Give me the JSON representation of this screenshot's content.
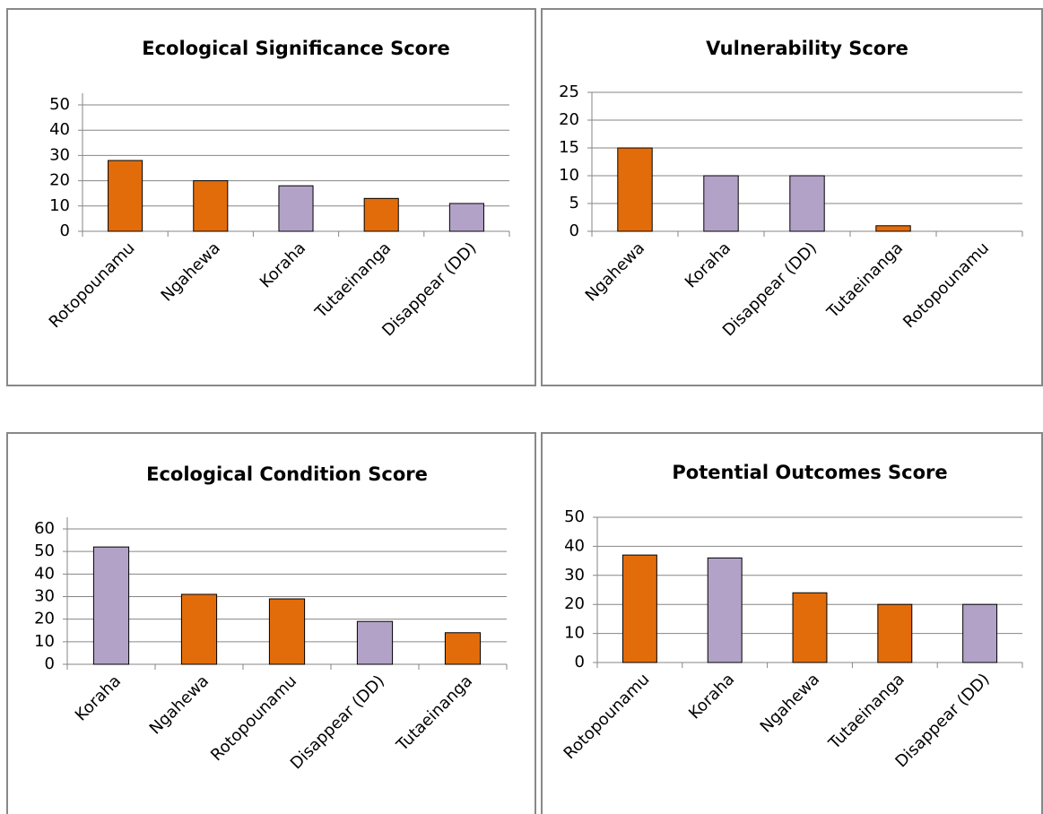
{
  "chart_data": [
    {
      "type": "bar",
      "title": "Ecological Significance Score",
      "categories": [
        "Rotopounamu",
        "Ngahewa",
        "Koraha",
        "Tutaeinanga",
        "Disappear (DD)"
      ],
      "values": [
        28,
        20,
        18,
        13,
        11
      ],
      "colors": [
        "#e36c0a",
        "#e36c0a",
        "#b3a2c7",
        "#e36c0a",
        "#b3a2c7"
      ],
      "ylim": [
        0,
        50
      ],
      "yticks": [
        0,
        10,
        20,
        30,
        40,
        50
      ],
      "grid": true
    },
    {
      "type": "bar",
      "title": "Vulnerability Score",
      "categories": [
        "Ngahewa",
        "Koraha",
        "Disappear (DD)",
        "Tutaeinanga",
        "Rotopounamu"
      ],
      "values": [
        15,
        10,
        10,
        1,
        0
      ],
      "colors": [
        "#e36c0a",
        "#b3a2c7",
        "#b3a2c7",
        "#e36c0a",
        "#e36c0a"
      ],
      "ylim": [
        0,
        25
      ],
      "yticks": [
        0,
        5,
        10,
        15,
        20,
        25
      ],
      "grid": true
    },
    {
      "type": "bar",
      "title": "Ecological Condition Score",
      "categories": [
        "Koraha",
        "Ngahewa",
        "Rotopounamu",
        "Disappear (DD)",
        "Tutaeinanga"
      ],
      "values": [
        52,
        31,
        29,
        19,
        14
      ],
      "colors": [
        "#b3a2c7",
        "#e36c0a",
        "#e36c0a",
        "#b3a2c7",
        "#e36c0a"
      ],
      "ylim": [
        0,
        60
      ],
      "yticks": [
        0,
        10,
        20,
        30,
        40,
        50,
        60
      ],
      "grid": true
    },
    {
      "type": "bar",
      "title": "Potential Outcomes Score",
      "categories": [
        "Rotopounamu",
        "Koraha",
        "Ngahewa",
        "Tutaeinanga",
        "Disappear (DD)"
      ],
      "values": [
        37,
        36,
        24,
        20,
        20
      ],
      "colors": [
        "#e36c0a",
        "#b3a2c7",
        "#e36c0a",
        "#e36c0a",
        "#b3a2c7"
      ],
      "ylim": [
        0,
        50
      ],
      "yticks": [
        0,
        10,
        20,
        30,
        40,
        50
      ],
      "grid": true
    }
  ]
}
